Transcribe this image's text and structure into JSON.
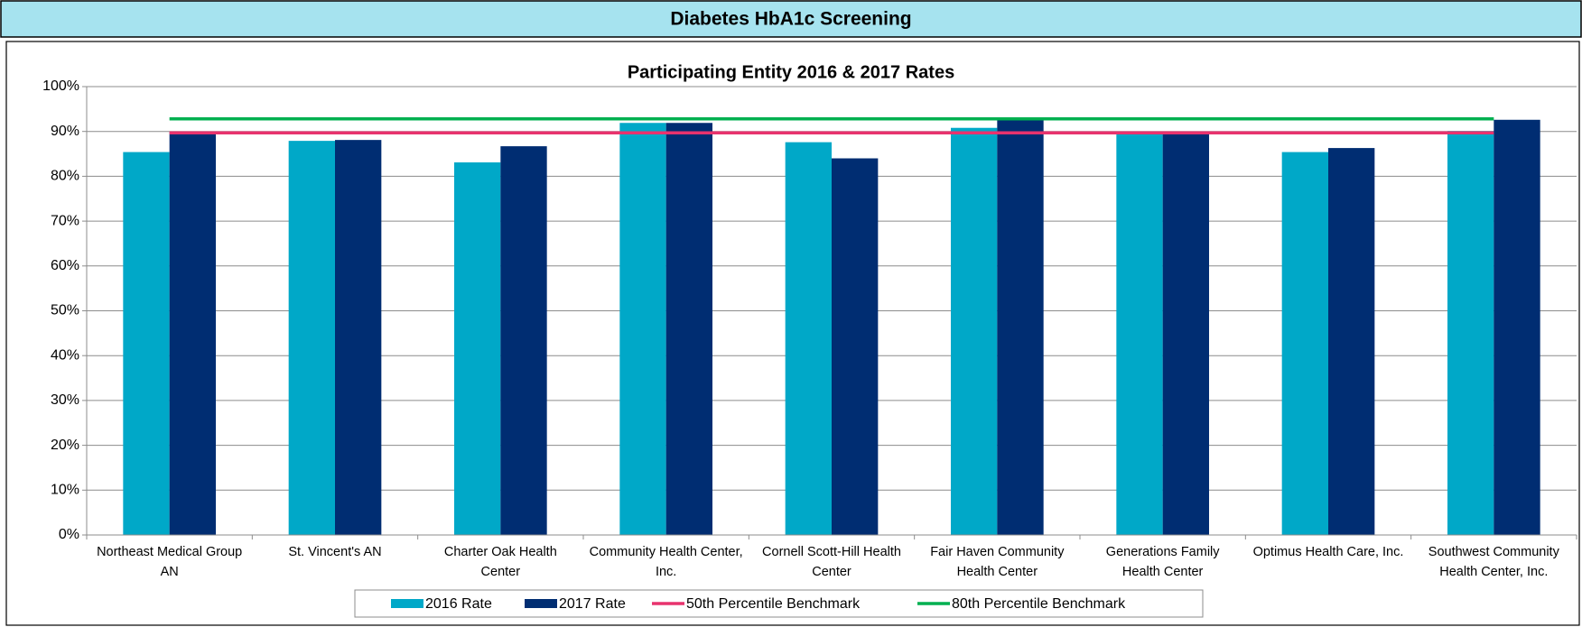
{
  "header": {
    "title": "Diabetes HbA1c Screening"
  },
  "chart_data": {
    "type": "bar",
    "title": "Participating Entity 2016 & 2017 Rates",
    "categories": [
      "Northeast Medical Group AN",
      "St. Vincent's AN",
      "Charter Oak Health Center",
      "Community Health Center, Inc.",
      "Cornell Scott-Hill Health Center",
      "Fair Haven Community Health Center",
      "Generations Family Health Center",
      "Optimus Health Care, Inc.",
      "Southwest Community Health Center, Inc."
    ],
    "series": [
      {
        "name": "2016 Rate",
        "type": "bar",
        "color": "#00a8c8",
        "values": [
          85.4,
          87.9,
          83.1,
          91.9,
          87.6,
          90.8,
          89.8,
          85.4,
          90.1
        ]
      },
      {
        "name": "2017 Rate",
        "type": "bar",
        "color": "#002d72",
        "values": [
          89.9,
          88.1,
          86.7,
          91.9,
          84.0,
          93.0,
          89.8,
          86.3,
          92.6
        ]
      },
      {
        "name": "50th Percentile Benchmark",
        "type": "line",
        "color": "#e8336e",
        "values": [
          89.7,
          89.7,
          89.7,
          89.7,
          89.7,
          89.7,
          89.7,
          89.7,
          89.7
        ]
      },
      {
        "name": "80th Percentile Benchmark",
        "type": "line",
        "color": "#00b050",
        "values": [
          92.8,
          92.8,
          92.8,
          92.8,
          92.8,
          92.8,
          92.8,
          92.8,
          92.8
        ]
      }
    ],
    "ylim": [
      0,
      100
    ],
    "yticks": [
      {
        "value": 0,
        "label": "0%"
      },
      {
        "value": 10,
        "label": "10%"
      },
      {
        "value": 20,
        "label": "20%"
      },
      {
        "value": 30,
        "label": "30%"
      },
      {
        "value": 40,
        "label": "40%"
      },
      {
        "value": 50,
        "label": "50%"
      },
      {
        "value": 60,
        "label": "60%"
      },
      {
        "value": 70,
        "label": "70%"
      },
      {
        "value": 80,
        "label": "80%"
      },
      {
        "value": 90,
        "label": "90%"
      },
      {
        "value": 100,
        "label": "100%"
      }
    ],
    "grid": true,
    "legend": "bottom"
  }
}
